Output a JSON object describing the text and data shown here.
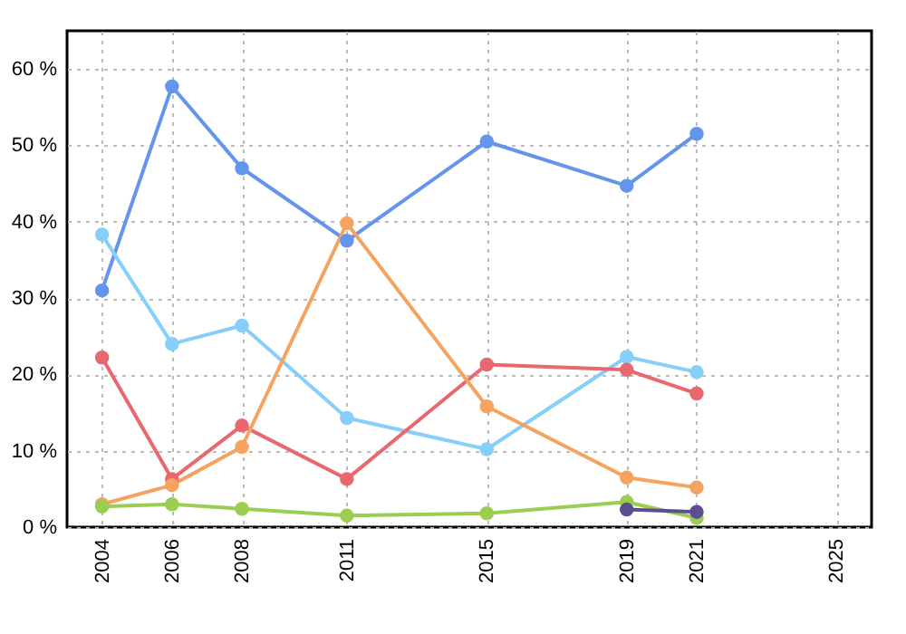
{
  "chart_data": {
    "type": "line",
    "x": [
      2004,
      2006,
      2008,
      2011,
      2015,
      2019,
      2021
    ],
    "xlim": [
      2003,
      2026
    ],
    "xticks": [
      2004,
      2006,
      2008,
      2011,
      2015,
      2019,
      2021,
      2025
    ],
    "ylim": [
      0,
      65
    ],
    "yticks": [
      {
        "value": 0,
        "label": "0 %"
      },
      {
        "value": 10,
        "label": "10 %"
      },
      {
        "value": 20,
        "label": "20 %"
      },
      {
        "value": 30,
        "label": "30 %"
      },
      {
        "value": 40,
        "label": "40 %"
      },
      {
        "value": 50,
        "label": "50 %"
      },
      {
        "value": 60,
        "label": "60 %"
      }
    ],
    "grid": true,
    "marker": "circle",
    "line_style": "solid",
    "legend": false,
    "series": [
      {
        "color": "#6495ed",
        "values": [
          31,
          57.7,
          47,
          37.5,
          50.5,
          44.7,
          51.5
        ]
      },
      {
        "color": "#87cefa",
        "values": [
          38.3,
          24,
          26.4,
          14.3,
          10.2,
          22.3,
          20.3
        ]
      },
      {
        "color": "#e9686e",
        "values": [
          22.2,
          6.3,
          13.3,
          6.3,
          21.3,
          20.6,
          17.5
        ]
      },
      {
        "color": "#f4a460",
        "values": [
          3,
          5.5,
          10.5,
          39.8,
          15.8,
          6.5,
          5.2
        ]
      },
      {
        "color": "#9acd50",
        "values": [
          2.7,
          3,
          2.4,
          1.5,
          1.8,
          3.3,
          1.2
        ]
      },
      {
        "color": "#5b4f8f",
        "x": [
          2019,
          2021
        ],
        "values": [
          2.3,
          2.0
        ]
      }
    ]
  }
}
